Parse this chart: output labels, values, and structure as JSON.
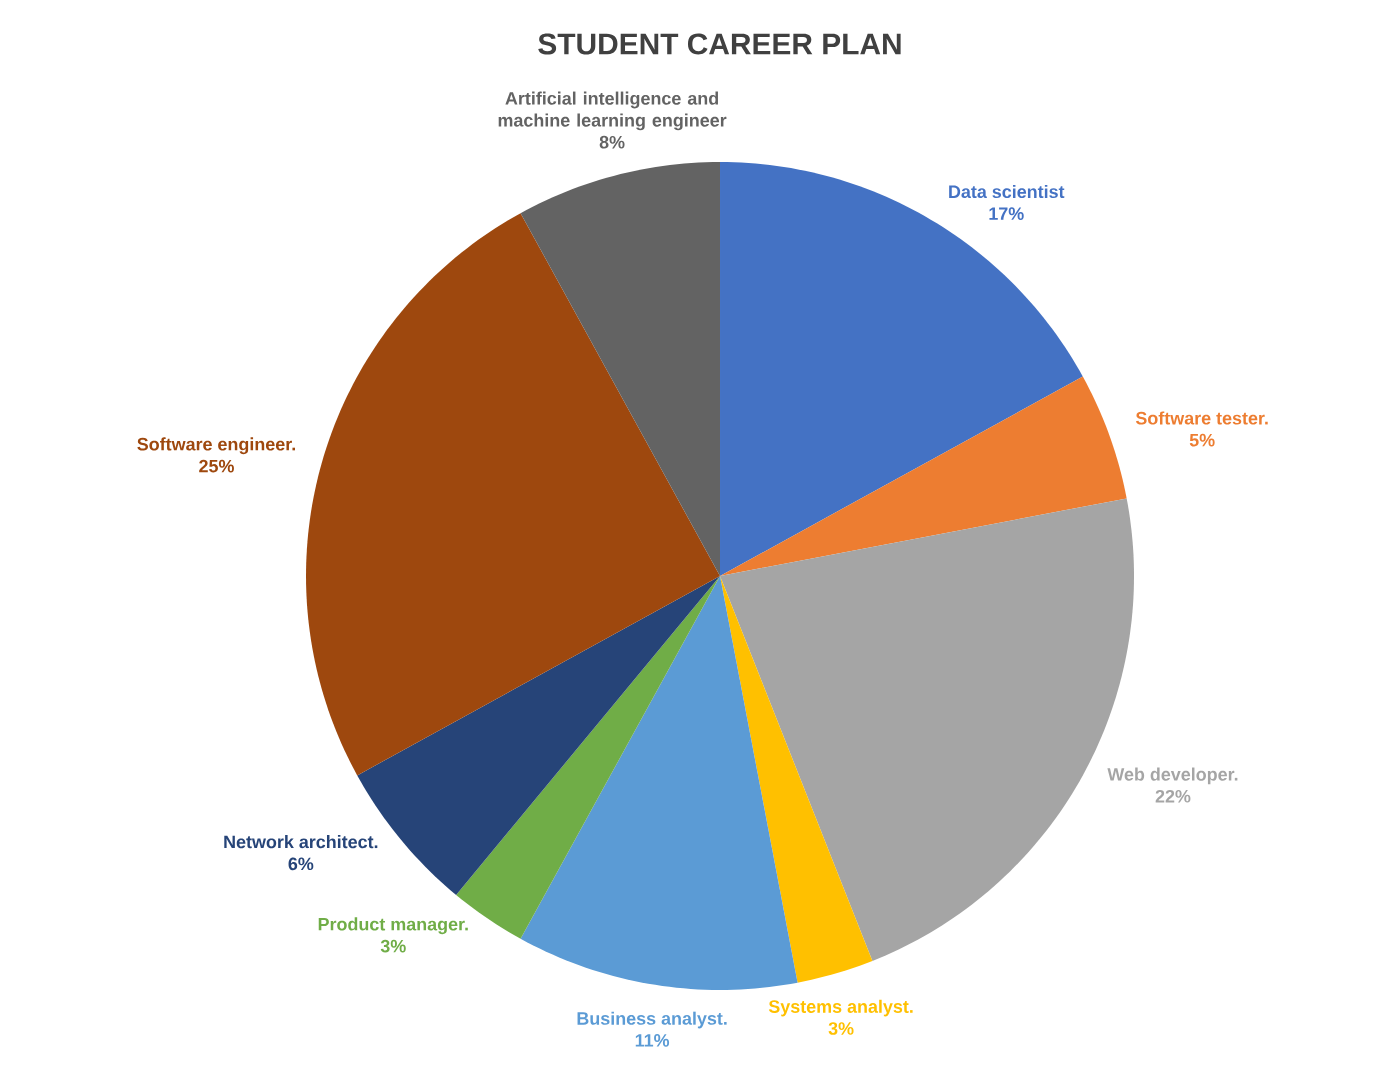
{
  "chart_data": {
    "type": "pie",
    "title": "STUDENT CAREER PLAN",
    "categories": [
      "Data scientist",
      "Software tester.",
      "Web developer.",
      "Systems analyst.",
      "Business analyst.",
      "Product manager.",
      "Network architect.",
      "Software engineer.",
      "Artificial intelligence and machine learning engineer"
    ],
    "values": [
      17,
      5,
      22,
      3,
      11,
      3,
      6,
      25,
      8
    ],
    "value_labels": [
      "17%",
      "5%",
      "22%",
      "3%",
      "11%",
      "3%",
      "6%",
      "25%",
      "8%"
    ],
    "colors": [
      "#4472c4",
      "#ed7d31",
      "#a5a5a5",
      "#ffc000",
      "#5b9bd5",
      "#70ad47",
      "#264478",
      "#9e480e",
      "#636363"
    ]
  }
}
